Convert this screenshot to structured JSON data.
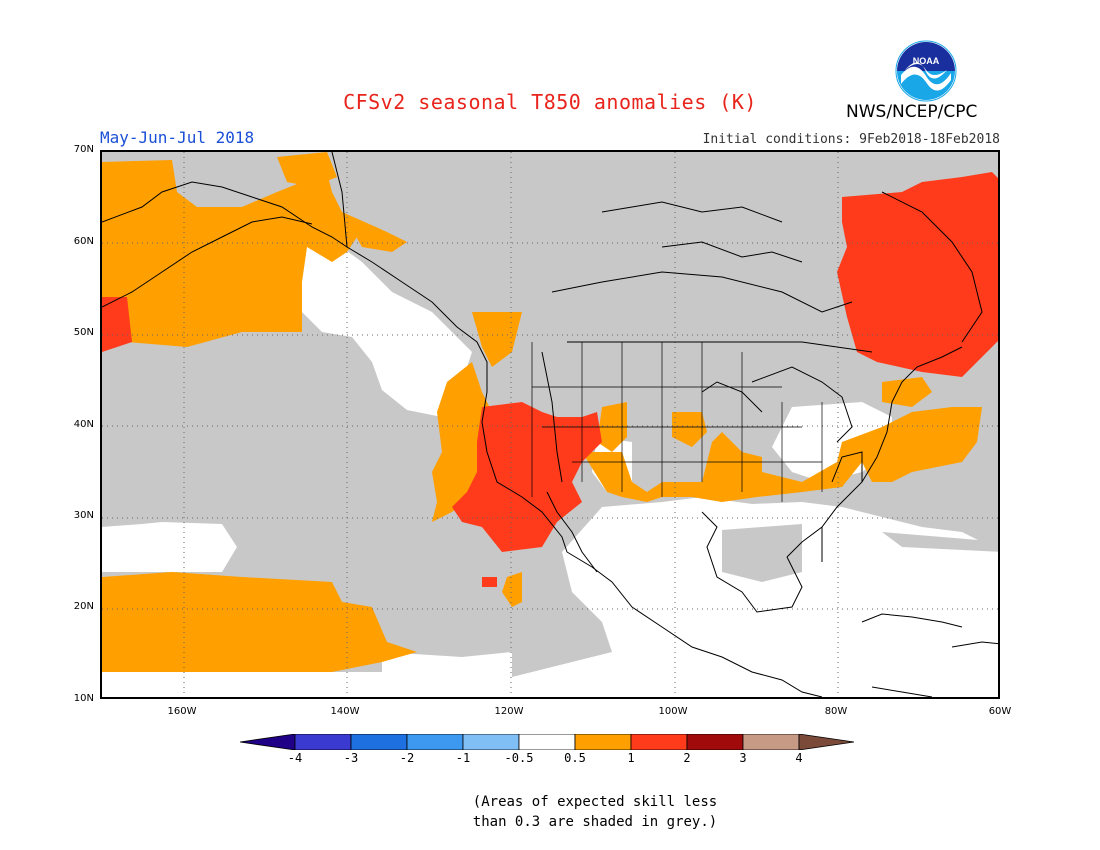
{
  "title": "CFSv2 seasonal T850 anomalies (K)",
  "agency": "NWS/NCEP/CPC",
  "logo_text": "NOAA",
  "season": "May-Jun-Jul 2018",
  "initial_conditions": "Initial conditions: 9Feb2018-18Feb2018",
  "map": {
    "lon_range": [
      -170,
      -60
    ],
    "lat_range": [
      10,
      70
    ],
    "y_ticks": [
      "70N",
      "60N",
      "50N",
      "40N",
      "30N",
      "20N",
      "10N"
    ],
    "x_ticks": [
      "160W",
      "140W",
      "120W",
      "100W",
      "80W",
      "60W"
    ],
    "grid": true
  },
  "colorbar": {
    "colors": [
      "#1f0086",
      "#3a3ad0",
      "#1e6fe0",
      "#3d98f0",
      "#80bff5",
      "#ffffff",
      "#ff9f00",
      "#ff3b1b",
      "#a10a0a",
      "#c79a85",
      "#7b4a38"
    ],
    "labels": [
      "-4",
      "-3",
      "-2",
      "-1",
      "-0.5",
      "0.5",
      "1",
      "2",
      "3",
      "4"
    ]
  },
  "note_line1": "(Areas of expected skill less",
  "note_line2": "than 0.3 are shaded in grey.)"
}
